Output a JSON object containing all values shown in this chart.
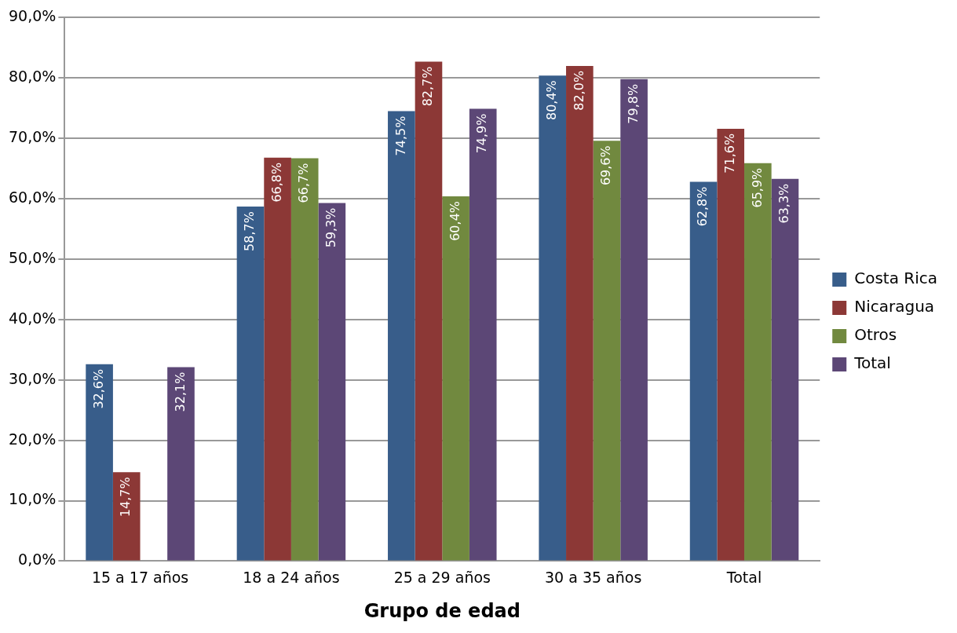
{
  "chart_data": {
    "type": "bar",
    "xlabel": "Grupo de edad",
    "categories": [
      "15 a 17 años",
      "18 a 24 años",
      "25 a 29 años",
      "30 a 35 años",
      "Total"
    ],
    "series": [
      {
        "name": "Costa Rica",
        "color": "#385d8a",
        "values": [
          32.6,
          58.7,
          74.5,
          80.4,
          62.8
        ],
        "value_labels": [
          "32,6%",
          "58,7%",
          "74,5%",
          "80,4%",
          "62,8%"
        ]
      },
      {
        "name": "Nicaragua",
        "color": "#8c3836",
        "values": [
          14.7,
          66.8,
          82.7,
          82.0,
          71.6
        ],
        "value_labels": [
          "14,7%",
          "66,8%",
          "82,7%",
          "82,0%",
          "71,6%"
        ]
      },
      {
        "name": "Otros",
        "color": "#71893f",
        "values": [
          null,
          66.7,
          60.4,
          69.6,
          65.9
        ],
        "value_labels": [
          null,
          "66,7%",
          "60,4%",
          "69,6%",
          "65,9%"
        ]
      },
      {
        "name": "Total",
        "color": "#5c4776",
        "values": [
          32.1,
          59.3,
          74.9,
          79.8,
          63.3
        ],
        "value_labels": [
          "32,1%",
          "59,3%",
          "74,9%",
          "79,8%",
          "63,3%"
        ]
      }
    ],
    "ylim": [
      0,
      90
    ],
    "yticks": [
      {
        "value": 0,
        "label": "0,0%"
      },
      {
        "value": 10,
        "label": "10,0%"
      },
      {
        "value": 20,
        "label": "20,0%"
      },
      {
        "value": 30,
        "label": "30,0%"
      },
      {
        "value": 40,
        "label": "40,0%"
      },
      {
        "value": 50,
        "label": "50,0%"
      },
      {
        "value": 60,
        "label": "60,0%"
      },
      {
        "value": 70,
        "label": "70,0%"
      },
      {
        "value": 80,
        "label": "80,0%"
      },
      {
        "value": 90,
        "label": "90,0%"
      }
    ],
    "grid": "y",
    "legend": "right"
  }
}
